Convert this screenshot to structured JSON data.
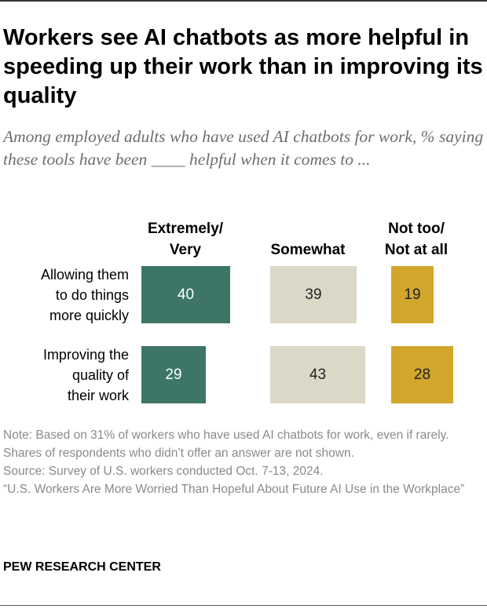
{
  "title": "Workers see AI chatbots as more helpful in speeding up their work than in improving its quality",
  "subtitle": "Among employed adults who have used AI chatbots for work, % saying these tools have been ____ helpful when it comes to ...",
  "chart_data": {
    "type": "bar",
    "orientation": "horizontal",
    "stacked": false,
    "categories": [
      "Allowing them to do things more quickly",
      "Improving the quality of their work"
    ],
    "series": [
      {
        "name": "Extremely/ Very",
        "values": [
          40,
          29
        ]
      },
      {
        "name": "Somewhat",
        "values": [
          39,
          43
        ]
      },
      {
        "name": "Not too/ Not at all",
        "values": [
          19,
          28
        ]
      }
    ],
    "colors": [
      "#3d7667",
      "#dcd8c8",
      "#d2a52c"
    ],
    "grid": false,
    "legend": "none"
  },
  "notes": {
    "note": "Note: Based on 31% of workers who have used AI chatbots for work, even if rarely. Shares of respondents who didn’t offer an answer are not shown.",
    "source": "Source: Survey of U.S. workers conducted Oct. 7-13, 2024.",
    "report": "“U.S. Workers Are More Worried Than Hopeful About Future AI Use in the Workplace”"
  },
  "brand": "PEW RESEARCH CENTER"
}
